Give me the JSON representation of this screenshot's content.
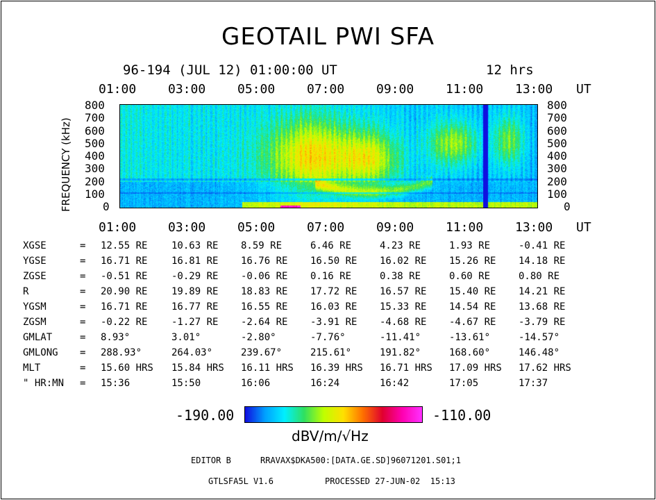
{
  "title": "GEOTAIL PWI SFA",
  "subtitle": {
    "start": "96-194 (JUL 12) 01:00:00 UT",
    "duration": "12 hrs"
  },
  "time_ticks": [
    "01:00",
    "03:00",
    "05:00",
    "07:00",
    "09:00",
    "11:00",
    "13:00"
  ],
  "time_unit": "UT",
  "chart_data": {
    "type": "heatmap",
    "title": "GEOTAIL PWI SFA",
    "xlabel": "UT",
    "ylabel": "FREQUENCY (kHz)",
    "x_ticks": [
      "01:00",
      "03:00",
      "05:00",
      "07:00",
      "09:00",
      "11:00",
      "13:00"
    ],
    "y_ticks": [
      0,
      100,
      200,
      300,
      400,
      500,
      600,
      700,
      800
    ],
    "ylim": [
      0,
      800
    ],
    "xlim": [
      "01:00",
      "13:00"
    ],
    "colorbar": {
      "min": "-190.00",
      "max": "-110.00",
      "label": "dBV/m/√Hz"
    },
    "colormap": [
      "#1010e0",
      "#00a0ff",
      "#00f0ff",
      "#30e060",
      "#c0ff00",
      "#ffe000",
      "#ff7000",
      "#e00030",
      "#ff00b0",
      "#ff30ff"
    ]
  },
  "rows": [
    {
      "label": "XGSE",
      "eq": "=",
      "values": [
        "12.55 RE",
        "10.63 RE",
        "8.59 RE",
        "6.46 RE",
        "4.23 RE",
        "1.93 RE",
        "-0.41 RE"
      ]
    },
    {
      "label": "YGSE",
      "eq": "=",
      "values": [
        "16.71 RE",
        "16.81 RE",
        "16.76 RE",
        "16.50 RE",
        "16.02 RE",
        "15.26 RE",
        "14.18 RE"
      ]
    },
    {
      "label": "ZGSE",
      "eq": "=",
      "values": [
        "-0.51 RE",
        "-0.29 RE",
        "-0.06 RE",
        "0.16 RE",
        "0.38 RE",
        "0.60 RE",
        "0.80 RE"
      ]
    },
    {
      "label": "R",
      "eq": "=",
      "values": [
        "20.90 RE",
        "19.89 RE",
        "18.83 RE",
        "17.72 RE",
        "16.57 RE",
        "15.40 RE",
        "14.21 RE"
      ]
    },
    {
      "label": "YGSM",
      "eq": "=",
      "values": [
        "16.71 RE",
        "16.77 RE",
        "16.55 RE",
        "16.03 RE",
        "15.33 RE",
        "14.54 RE",
        "13.68 RE"
      ]
    },
    {
      "label": "ZGSM",
      "eq": "=",
      "values": [
        "-0.22 RE",
        "-1.27 RE",
        "-2.64 RE",
        "-3.91 RE",
        "-4.68 RE",
        "-4.67 RE",
        "-3.79 RE"
      ]
    },
    {
      "label": "GMLAT",
      "eq": "=",
      "values": [
        "8.93°",
        "3.01°",
        "-2.80°",
        "-7.76°",
        "-11.41°",
        "-13.61°",
        "-14.57°"
      ]
    },
    {
      "label": "GMLONG",
      "eq": "=",
      "values": [
        "288.93°",
        "264.03°",
        "239.67°",
        "215.61°",
        "191.82°",
        "168.60°",
        "146.48°"
      ]
    },
    {
      "label": "MLT",
      "eq": "=",
      "values": [
        "15.60 HRS",
        "15.84 HRS",
        "16.11 HRS",
        "16.39 HRS",
        "16.71 HRS",
        "17.09 HRS",
        "17.62 HRS"
      ]
    },
    {
      "label": "\" HR:MN",
      "eq": "=",
      "values": [
        "15:36",
        "15:50",
        "16:06",
        "16:24",
        "16:42",
        "17:05",
        "17:37"
      ]
    }
  ],
  "footer": {
    "editor": "EDITOR B",
    "path": "RRAVAX$DKA500:[DATA.GE.SD]96071201.S01;1",
    "version": "GTLSFA5L V1.6",
    "processed": "PROCESSED 27-JUN-02  15:13"
  }
}
